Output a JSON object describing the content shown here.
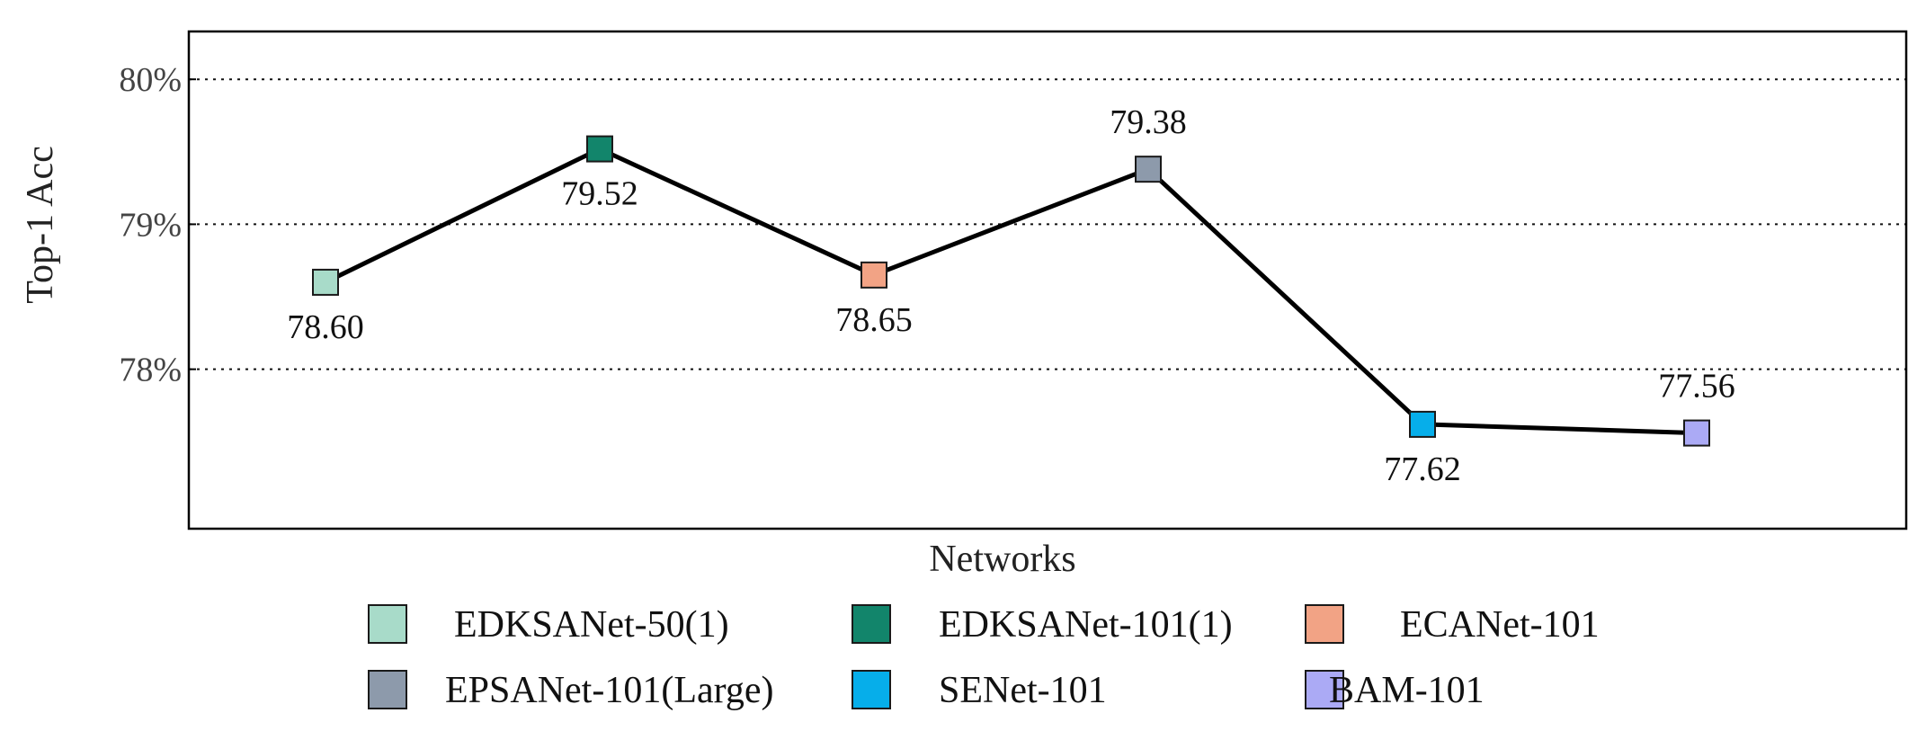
{
  "chart_data": {
    "type": "line",
    "xlabel": "Networks",
    "ylabel": "Top-1 Acc",
    "ylim": [
      76.9,
      80.33
    ],
    "yticks": [
      {
        "value": 78,
        "label": "78%"
      },
      {
        "value": 79,
        "label": "79%"
      },
      {
        "value": 80,
        "label": "80%"
      }
    ],
    "grid": "y-dotted",
    "legend_position": "bottom",
    "points": [
      {
        "name": "EDKSANet-50(1)",
        "value": 78.6,
        "label": "78.60",
        "color": "#a8dbc9",
        "label_pos": "below"
      },
      {
        "name": "EDKSANet-101(1)",
        "value": 79.52,
        "label": "79.52",
        "color": "#12856b",
        "label_pos": "below"
      },
      {
        "name": "ECANet-101",
        "value": 78.65,
        "label": "78.65",
        "color": "#f2a385",
        "label_pos": "below"
      },
      {
        "name": "EPSANet-101(Large)",
        "value": 79.38,
        "label": "79.38",
        "color": "#8d9aab",
        "label_pos": "above"
      },
      {
        "name": "SENet-101",
        "value": 77.62,
        "label": "77.62",
        "color": "#06aeea",
        "label_pos": "below"
      },
      {
        "name": "BAM-101",
        "value": 77.56,
        "label": "77.56",
        "color": "#abaaf5",
        "label_pos": "above"
      }
    ]
  }
}
